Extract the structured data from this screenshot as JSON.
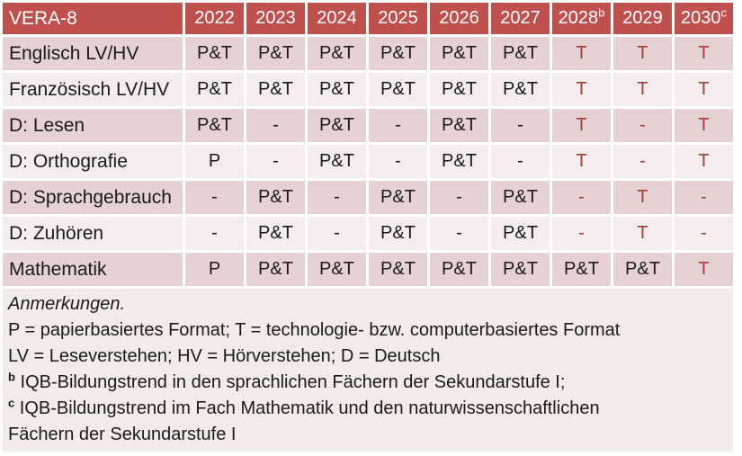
{
  "colors": {
    "header_bg": "#c0504d",
    "header_text": "#ffffff",
    "band_dark": "#e6d2d2",
    "band_light": "#f5eded",
    "notes_bg": "#f3eaea",
    "body_text": "#1a1a1a",
    "red_text": "#a33c3a"
  },
  "table": {
    "title": "VERA-8",
    "columns": [
      {
        "label": "2022",
        "sup": ""
      },
      {
        "label": "2023",
        "sup": ""
      },
      {
        "label": "2024",
        "sup": ""
      },
      {
        "label": "2025",
        "sup": ""
      },
      {
        "label": "2026",
        "sup": ""
      },
      {
        "label": "2027",
        "sup": ""
      },
      {
        "label": "2028",
        "sup": "b"
      },
      {
        "label": "2029",
        "sup": ""
      },
      {
        "label": "2030",
        "sup": "c"
      }
    ],
    "rows": [
      {
        "label": "Englisch LV/HV",
        "cells": [
          "P&T",
          "P&T",
          "P&T",
          "P&T",
          "P&T",
          "P&T",
          "T",
          "T",
          "T"
        ],
        "cell_colors": [
          "black",
          "black",
          "black",
          "black",
          "black",
          "black",
          "red",
          "red",
          "red"
        ]
      },
      {
        "label": "Französisch LV/HV",
        "cells": [
          "P&T",
          "P&T",
          "P&T",
          "P&T",
          "P&T",
          "P&T",
          "T",
          "T",
          "T"
        ],
        "cell_colors": [
          "black",
          "black",
          "black",
          "black",
          "black",
          "black",
          "red",
          "red",
          "red"
        ]
      },
      {
        "label": "D: Lesen",
        "cells": [
          "P&T",
          "-",
          "P&T",
          "-",
          "P&T",
          "-",
          "T",
          "-",
          "T"
        ],
        "cell_colors": [
          "black",
          "black",
          "black",
          "black",
          "black",
          "black",
          "red",
          "red",
          "red"
        ]
      },
      {
        "label": "D: Orthografie",
        "cells": [
          "P",
          "-",
          "P&T",
          "-",
          "P&T",
          "-",
          "T",
          "-",
          "T"
        ],
        "cell_colors": [
          "black",
          "black",
          "black",
          "black",
          "black",
          "black",
          "red",
          "red",
          "red"
        ]
      },
      {
        "label": "D: Sprachgebrauch",
        "cells": [
          "-",
          "P&T",
          "-",
          "P&T",
          "-",
          "P&T",
          "-",
          "T",
          "-"
        ],
        "cell_colors": [
          "black",
          "black",
          "black",
          "black",
          "black",
          "black",
          "red",
          "red",
          "red"
        ]
      },
      {
        "label": "D: Zuhören",
        "cells": [
          "-",
          "P&T",
          "-",
          "P&T",
          "-",
          "P&T",
          "-",
          "T",
          "-"
        ],
        "cell_colors": [
          "black",
          "black",
          "black",
          "black",
          "black",
          "black",
          "red",
          "red",
          "red"
        ]
      },
      {
        "label": "Mathematik",
        "cells": [
          "P",
          "P&T",
          "P&T",
          "P&T",
          "P&T",
          "P&T",
          "P&T",
          "P&T",
          "T"
        ],
        "cell_colors": [
          "black",
          "black",
          "black",
          "black",
          "black",
          "black",
          "black",
          "black",
          "red"
        ]
      }
    ]
  },
  "notes": {
    "lines": [
      {
        "sup": "",
        "text": "Anmerkungen.",
        "italic": true
      },
      {
        "sup": "",
        "text": "P = papierbasiertes Format; T = technologie- bzw. computerbasiertes Format",
        "italic": false
      },
      {
        "sup": "",
        "text": "LV = Leseverstehen; HV = Hörverstehen; D = Deutsch",
        "italic": false
      },
      {
        "sup": "b",
        "text": "IQB-Bildungstrend in den sprachlichen Fächern der Sekundarstufe I;",
        "italic": false
      },
      {
        "sup": "c",
        "text": "IQB-Bildungstrend im Fach Mathematik und den naturwissenschaftlichen\nFächern der Sekundarstufe I",
        "italic": false
      }
    ]
  }
}
